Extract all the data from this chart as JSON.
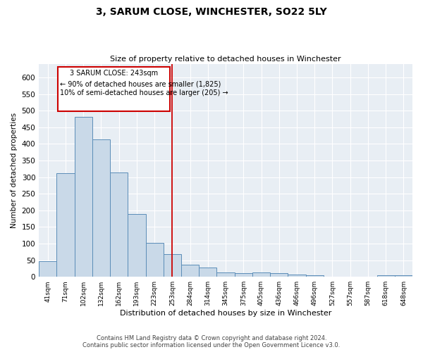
{
  "title": "3, SARUM CLOSE, WINCHESTER, SO22 5LY",
  "subtitle": "Size of property relative to detached houses in Winchester",
  "xlabel": "Distribution of detached houses by size in Winchester",
  "ylabel": "Number of detached properties",
  "categories": [
    "41sqm",
    "71sqm",
    "102sqm",
    "132sqm",
    "162sqm",
    "193sqm",
    "223sqm",
    "253sqm",
    "284sqm",
    "314sqm",
    "345sqm",
    "375sqm",
    "405sqm",
    "436sqm",
    "466sqm",
    "496sqm",
    "527sqm",
    "557sqm",
    "587sqm",
    "618sqm",
    "648sqm"
  ],
  "values": [
    46,
    312,
    481,
    413,
    315,
    190,
    103,
    68,
    37,
    29,
    13,
    10,
    13,
    10,
    7,
    4,
    1,
    0,
    0,
    4,
    4
  ],
  "bar_color": "#c9d9e8",
  "bar_edge_color": "#5b8db8",
  "vline_x": 7.0,
  "vline_color": "#cc0000",
  "annotation_line1": "3 SARUM CLOSE: 243sqm",
  "annotation_line2": "← 90% of detached houses are smaller (1,825)",
  "annotation_line3": "10% of semi-detached houses are larger (205) →",
  "box_color": "#cc0000",
  "ylim": [
    0,
    640
  ],
  "yticks": [
    0,
    50,
    100,
    150,
    200,
    250,
    300,
    350,
    400,
    450,
    500,
    550,
    600
  ],
  "footer_line1": "Contains HM Land Registry data © Crown copyright and database right 2024.",
  "footer_line2": "Contains public sector information licensed under the Open Government Licence v3.0.",
  "plot_background": "#e8eef4"
}
